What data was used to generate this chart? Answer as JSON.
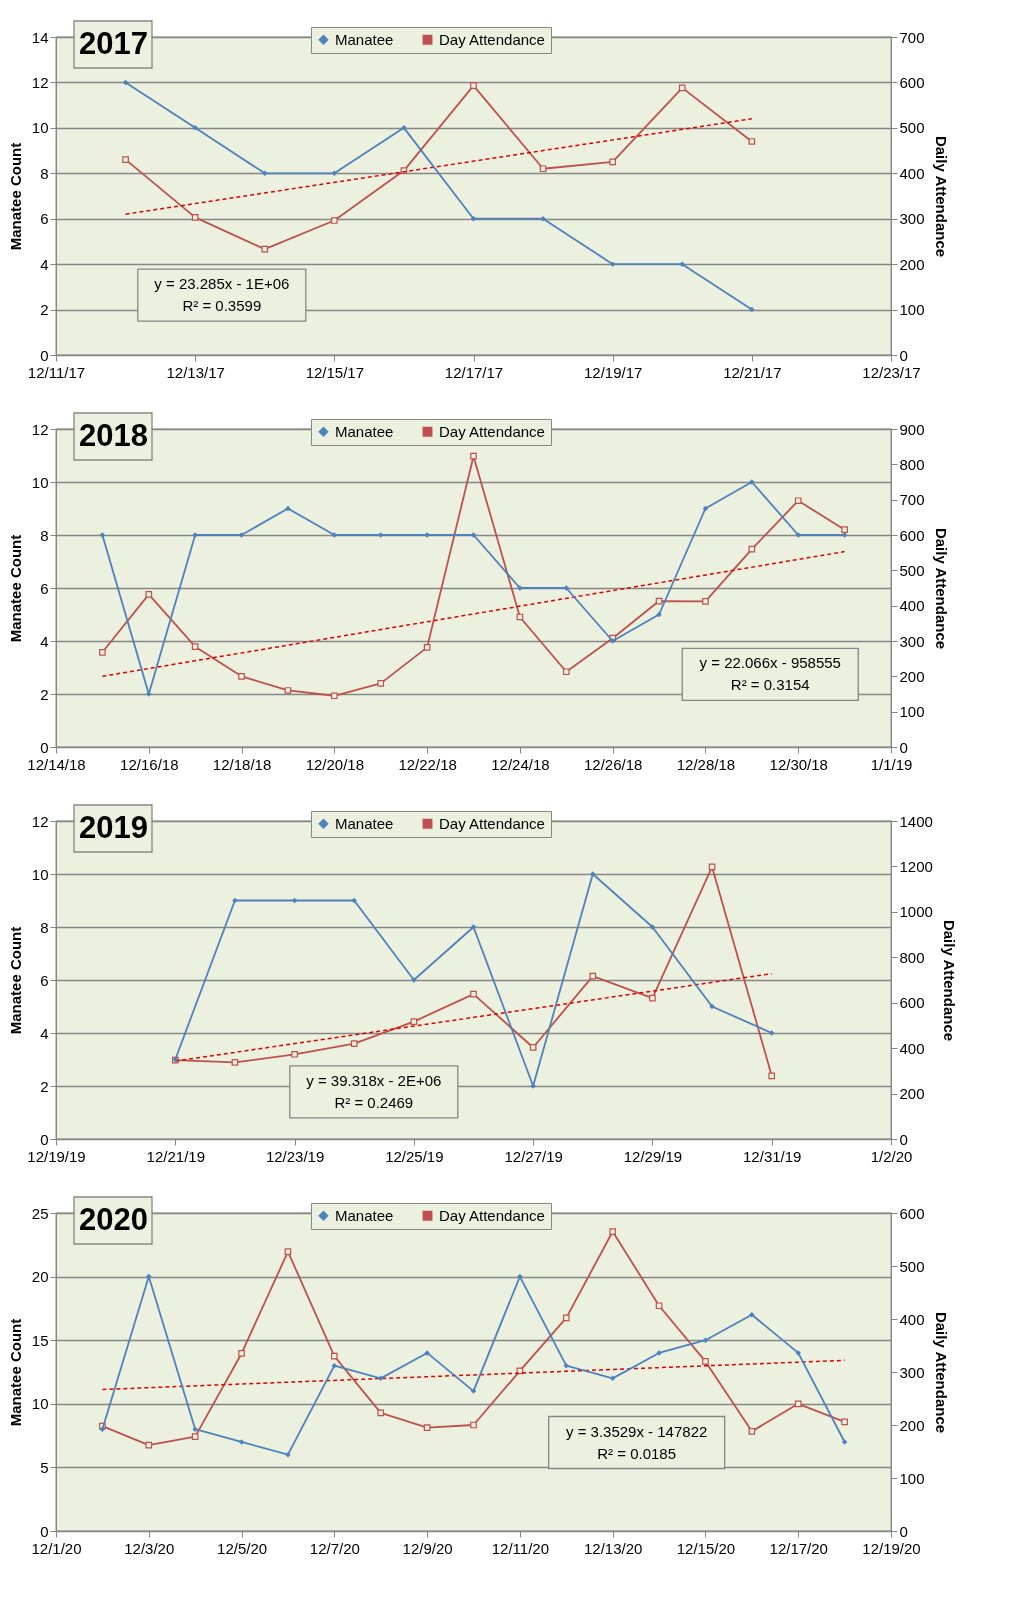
{
  "chart_data": [
    {
      "type": "line",
      "title": "2017",
      "ylabel": "Manatee Count",
      "y2label": "Daily Attendance",
      "annotations": [
        "y = 23.285x - 1E+06",
        "R² = 0.3599"
      ],
      "x": [
        "2017-12-12",
        "2017-12-13",
        "2017-12-14",
        "2017-12-15",
        "2017-12-16",
        "2017-12-17",
        "2017-12-18",
        "2017-12-19",
        "2017-12-20",
        "2017-12-21"
      ],
      "xlim": [
        "2017-12-11",
        "2017-12-23"
      ],
      "xticks": [
        {
          "value": "2017-12-11",
          "label": "12/11/17"
        },
        {
          "value": "2017-12-13",
          "label": "12/13/17"
        },
        {
          "value": "2017-12-15",
          "label": "12/15/17"
        },
        {
          "value": "2017-12-17",
          "label": "12/17/17"
        },
        {
          "value": "2017-12-19",
          "label": "12/19/17"
        },
        {
          "value": "2017-12-21",
          "label": "12/21/17"
        },
        {
          "value": "2017-12-23",
          "label": "12/23/17"
        }
      ],
      "ylim": [
        0,
        14
      ],
      "yticks": [
        0,
        2,
        4,
        6,
        8,
        10,
        12,
        14
      ],
      "y2lim": [
        0,
        700
      ],
      "y2ticks": [
        0,
        100,
        200,
        300,
        400,
        500,
        600,
        700
      ],
      "grid": "y",
      "legend": "top",
      "series": [
        {
          "name": "Manatee",
          "color": "#4f81bd",
          "marker": "diamond",
          "values": [
            12,
            10,
            8,
            8,
            10,
            6,
            6,
            4,
            4,
            2
          ]
        },
        {
          "name": "Day Attendance",
          "color": "#c0504d",
          "marker": "square",
          "axis": "y2",
          "values": [
            430,
            303,
            233,
            296,
            406,
            593,
            410,
            425,
            588,
            470
          ]
        },
        {
          "type": "line",
          "color": "#e00000",
          "line_style": "dashed",
          "marker": "none",
          "axis": "y2",
          "x": [
            "2017-12-12",
            "2017-12-21"
          ],
          "values": [
            310,
            520
          ]
        }
      ]
    },
    {
      "type": "line",
      "title": "2018",
      "ylabel": "Manatee Count",
      "y2label": "Daily Attendance",
      "annotations": [
        "y = 22.066x - 958555",
        "R² = 0.3154"
      ],
      "x": [
        "2018-12-15",
        "2018-12-16",
        "2018-12-17",
        "2018-12-18",
        "2018-12-19",
        "2018-12-20",
        "2018-12-21",
        "2018-12-22",
        "2018-12-23",
        "2018-12-24",
        "2018-12-25",
        "2018-12-26",
        "2018-12-27",
        "2018-12-28",
        "2018-12-29",
        "2018-12-30",
        "2018-12-31"
      ],
      "xlim": [
        "2018-12-14",
        "2019-01-01"
      ],
      "xticks": [
        {
          "value": "2018-12-14",
          "label": "12/14/18"
        },
        {
          "value": "2018-12-16",
          "label": "12/16/18"
        },
        {
          "value": "2018-12-18",
          "label": "12/18/18"
        },
        {
          "value": "2018-12-20",
          "label": "12/20/18"
        },
        {
          "value": "2018-12-22",
          "label": "12/22/18"
        },
        {
          "value": "2018-12-24",
          "label": "12/24/18"
        },
        {
          "value": "2018-12-26",
          "label": "12/26/18"
        },
        {
          "value": "2018-12-28",
          "label": "12/28/18"
        },
        {
          "value": "2018-12-30",
          "label": "12/30/18"
        },
        {
          "value": "2019-01-01",
          "label": "1/1/19"
        }
      ],
      "ylim": [
        0,
        12
      ],
      "yticks": [
        0,
        2,
        4,
        6,
        8,
        10,
        12
      ],
      "y2lim": [
        0,
        900
      ],
      "y2ticks": [
        0,
        100,
        200,
        300,
        400,
        500,
        600,
        700,
        800,
        900
      ],
      "grid": "y",
      "legend": "top",
      "series": [
        {
          "name": "Manatee",
          "color": "#4f81bd",
          "marker": "diamond",
          "values": [
            8,
            2,
            8,
            8,
            9,
            8,
            8,
            8,
            8,
            6,
            6,
            4,
            5,
            9,
            10,
            8,
            8
          ]
        },
        {
          "name": "Day Attendance",
          "color": "#c0504d",
          "marker": "square",
          "axis": "y2",
          "values": [
            268,
            432,
            284,
            200,
            160,
            145,
            180,
            282,
            823,
            368,
            213,
            308,
            413,
            412,
            560,
            697,
            615
          ]
        },
        {
          "type": "line",
          "color": "#e00000",
          "line_style": "dashed",
          "marker": "none",
          "axis": "y2",
          "x": [
            "2018-12-15",
            "2018-12-31"
          ],
          "values": [
            200,
            553
          ]
        }
      ]
    },
    {
      "type": "line",
      "title": "2019",
      "ylabel": "Manatee Count",
      "y2label": "Daily Attendance",
      "annotations": [
        "y = 39.318x - 2E+06",
        "R² = 0.2469"
      ],
      "x": [
        "2019-12-21",
        "2019-12-22",
        "2019-12-23",
        "2019-12-24",
        "2019-12-25",
        "2019-12-26",
        "2019-12-27",
        "2019-12-28",
        "2019-12-29",
        "2019-12-30",
        "2019-12-31"
      ],
      "xlim": [
        "2019-12-19",
        "2020-01-02"
      ],
      "xticks": [
        {
          "value": "2019-12-19",
          "label": "12/19/19"
        },
        {
          "value": "2019-12-21",
          "label": "12/21/19"
        },
        {
          "value": "2019-12-23",
          "label": "12/23/19"
        },
        {
          "value": "2019-12-25",
          "label": "12/25/19"
        },
        {
          "value": "2019-12-27",
          "label": "12/27/19"
        },
        {
          "value": "2019-12-29",
          "label": "12/29/19"
        },
        {
          "value": "2019-12-31",
          "label": "12/31/19"
        },
        {
          "value": "2020-01-02",
          "label": "1/2/20"
        }
      ],
      "ylim": [
        0,
        12
      ],
      "yticks": [
        0,
        2,
        4,
        6,
        8,
        10,
        12
      ],
      "y2lim": [
        0,
        1400
      ],
      "y2ticks": [
        0,
        200,
        400,
        600,
        800,
        1000,
        1200,
        1400
      ],
      "grid": "y",
      "legend": "top",
      "series": [
        {
          "name": "Manatee",
          "color": "#4f81bd",
          "marker": "diamond",
          "values": [
            3,
            9,
            9,
            9,
            6,
            8,
            2,
            10,
            8,
            5,
            4
          ]
        },
        {
          "name": "Day Attendance",
          "color": "#c0504d",
          "marker": "square",
          "axis": "y2",
          "values": [
            347,
            337,
            373,
            420,
            517,
            638,
            403,
            717,
            620,
            1198,
            278
          ]
        },
        {
          "type": "line",
          "color": "#e00000",
          "line_style": "dashed",
          "marker": "none",
          "axis": "y2",
          "x": [
            "2019-12-21",
            "2019-12-31"
          ],
          "values": [
            343,
            728
          ]
        }
      ]
    },
    {
      "type": "line",
      "title": "2020",
      "ylabel": "Manatee Count",
      "y2label": "Daily Attendance",
      "annotations": [
        "y = 3.3529x - 147822",
        "R² = 0.0185"
      ],
      "x": [
        "2020-12-02",
        "2020-12-03",
        "2020-12-04",
        "2020-12-05",
        "2020-12-06",
        "2020-12-07",
        "2020-12-08",
        "2020-12-09",
        "2020-12-10",
        "2020-12-11",
        "2020-12-12",
        "2020-12-13",
        "2020-12-14",
        "2020-12-15",
        "2020-12-16",
        "2020-12-17",
        "2020-12-18"
      ],
      "xlim": [
        "2020-12-01",
        "2020-12-19"
      ],
      "xticks": [
        {
          "value": "2020-12-01",
          "label": "12/1/20"
        },
        {
          "value": "2020-12-03",
          "label": "12/3/20"
        },
        {
          "value": "2020-12-05",
          "label": "12/5/20"
        },
        {
          "value": "2020-12-07",
          "label": "12/7/20"
        },
        {
          "value": "2020-12-09",
          "label": "12/9/20"
        },
        {
          "value": "2020-12-11",
          "label": "12/11/20"
        },
        {
          "value": "2020-12-13",
          "label": "12/13/20"
        },
        {
          "value": "2020-12-15",
          "label": "12/15/20"
        },
        {
          "value": "2020-12-17",
          "label": "12/17/20"
        },
        {
          "value": "2020-12-19",
          "label": "12/19/20"
        }
      ],
      "ylim": [
        0,
        25
      ],
      "yticks": [
        0,
        5,
        10,
        15,
        20,
        25
      ],
      "y2lim": [
        0,
        600
      ],
      "y2ticks": [
        0,
        100,
        200,
        300,
        400,
        500,
        600
      ],
      "grid": "y",
      "legend": "top",
      "series": [
        {
          "name": "Manatee",
          "color": "#4f81bd",
          "marker": "diamond",
          "values": [
            8,
            20,
            8,
            7,
            6,
            13,
            12,
            14,
            11,
            20,
            13,
            12,
            14,
            15,
            17,
            14,
            7
          ]
        },
        {
          "name": "Day Attendance",
          "color": "#c0504d",
          "marker": "square",
          "axis": "y2",
          "values": [
            198,
            162,
            178,
            335,
            527,
            330,
            223,
            195,
            200,
            302,
            402,
            565,
            425,
            320,
            188,
            240,
            206
          ]
        },
        {
          "type": "line",
          "color": "#e00000",
          "line_style": "dashed",
          "marker": "none",
          "axis": "y2",
          "x": [
            "2020-12-02",
            "2020-12-18"
          ],
          "values": [
            267,
            322
          ]
        }
      ]
    }
  ]
}
